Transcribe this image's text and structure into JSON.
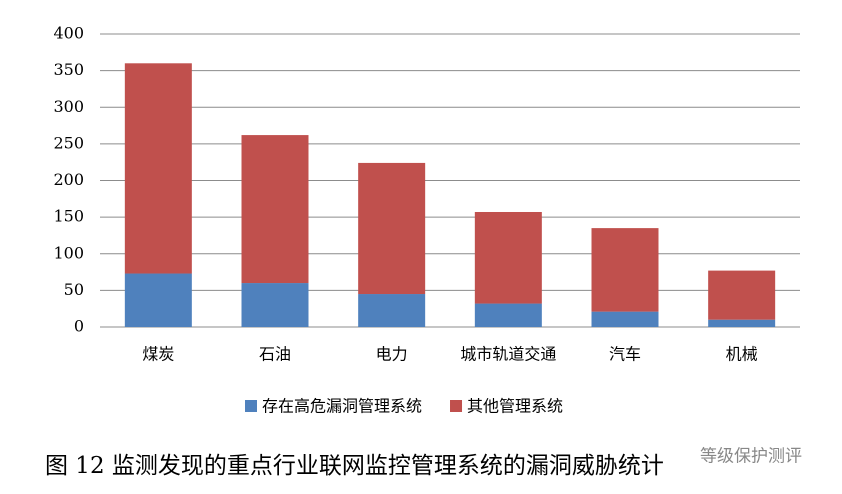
{
  "chart_data": {
    "type": "stacked_bar",
    "categories": [
      "煤炭",
      "石油",
      "电力",
      "城市轨道交通",
      "汽车",
      "机械"
    ],
    "series": [
      {
        "name": "存在高危漏洞管理系统",
        "color": "#4f81bd",
        "values": [
          73,
          60,
          45,
          32,
          21,
          10
        ]
      },
      {
        "name": "其他管理系统",
        "color": "#c0504d",
        "values": [
          287,
          202,
          179,
          125,
          114,
          67
        ]
      }
    ],
    "ylim": [
      0,
      400
    ],
    "yticks": [
      0,
      50,
      100,
      150,
      200,
      250,
      300,
      350,
      400
    ],
    "grid": true,
    "legend": "bottom"
  },
  "caption": "图 12 监测发现的重点行业联网监控管理系统的漏洞威胁统计",
  "watermark": "等级保护测评"
}
